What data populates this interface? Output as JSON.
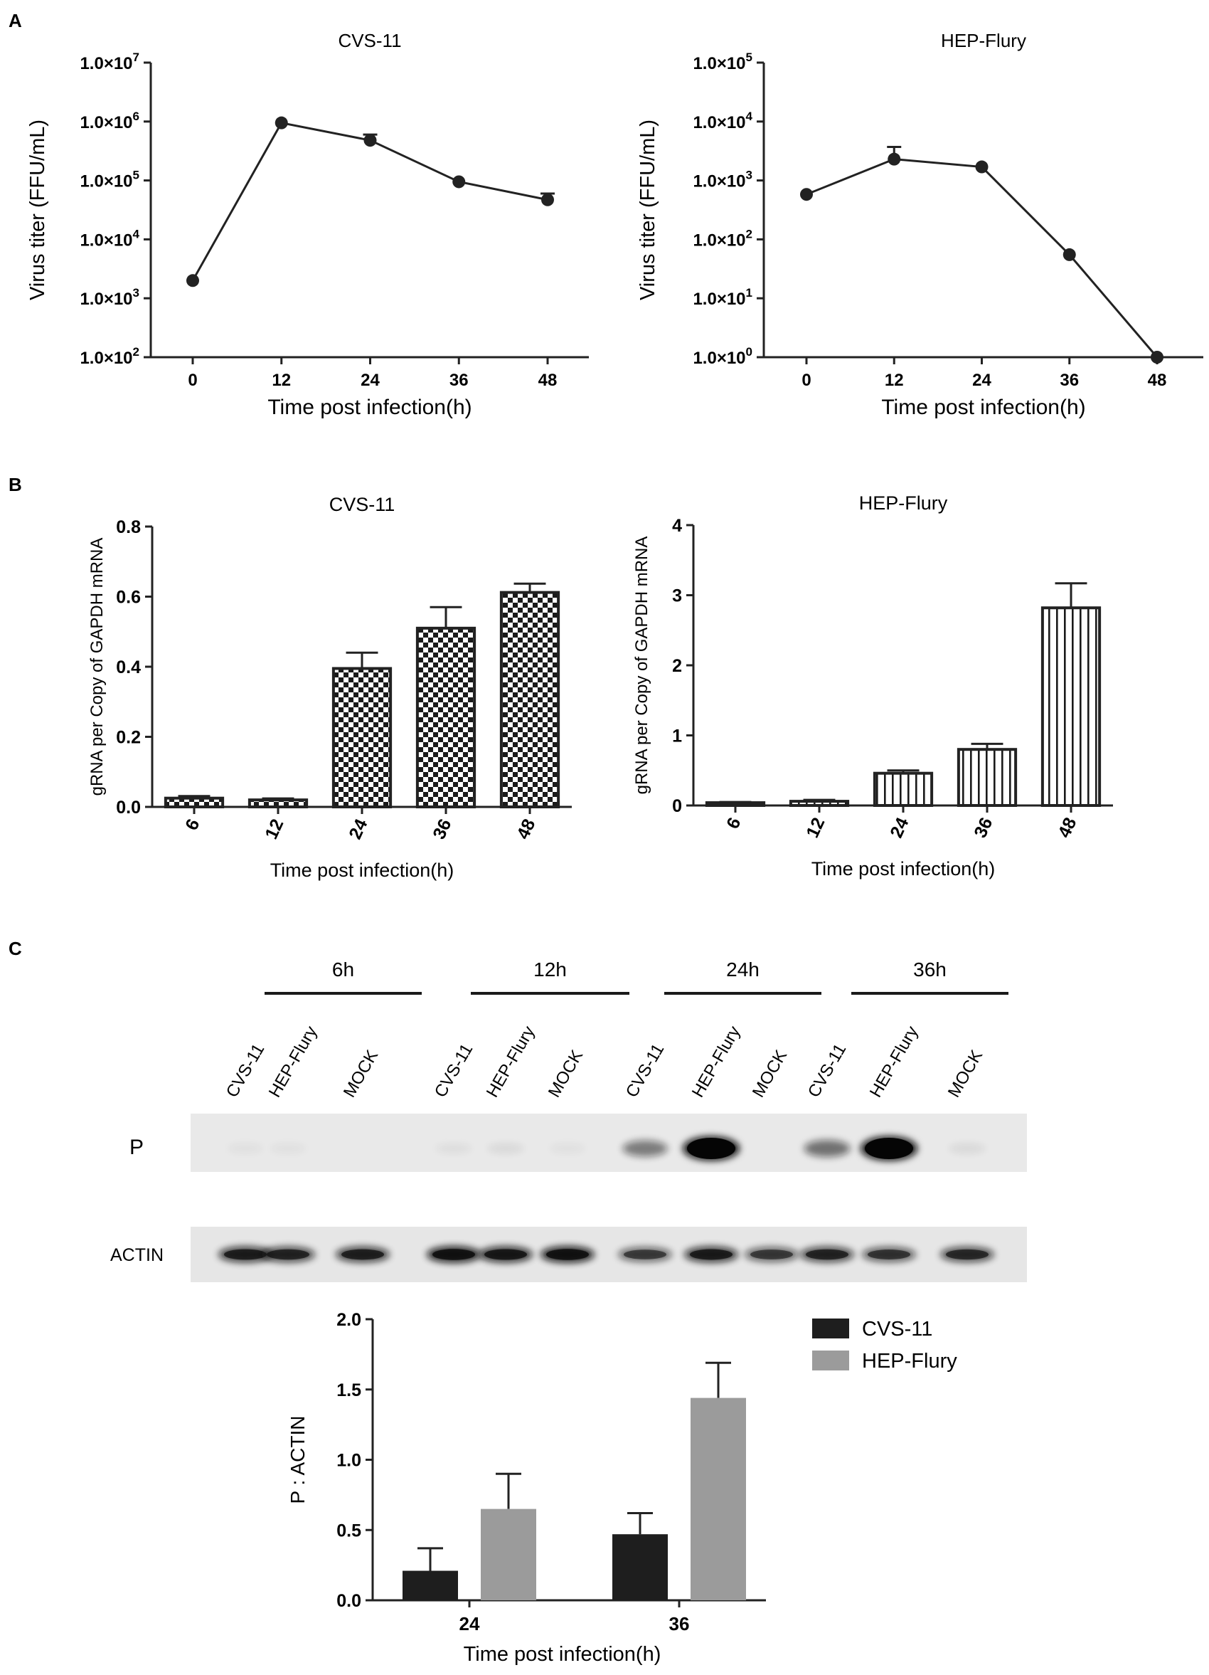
{
  "panels": {
    "A": "A",
    "B": "B",
    "C": "C"
  },
  "chart_data": [
    {
      "id": "A1",
      "type": "line",
      "title": "CVS-11",
      "xlabel": "Time post infection(h)",
      "ylabel": "Virus titer (FFU/mL)",
      "y_scale": "log",
      "ylim": [
        100,
        10000000
      ],
      "x": [
        0,
        12,
        24,
        36,
        48
      ],
      "y": [
        2000,
        950000,
        480000,
        95000,
        47000
      ],
      "err": [
        0,
        0,
        120000,
        0,
        13000
      ],
      "y_tick_labels": [
        {
          "b": "1.0×10",
          "e": "2"
        },
        {
          "b": "1.0×10",
          "e": "3"
        },
        {
          "b": "1.0×10",
          "e": "4"
        },
        {
          "b": "1.0×10",
          "e": "5"
        },
        {
          "b": "1.0×10",
          "e": "6"
        },
        {
          "b": "1.0×10",
          "e": "7"
        }
      ]
    },
    {
      "id": "A2",
      "type": "line",
      "title": "HEP-Flury",
      "xlabel": "Time post infection(h)",
      "ylabel": "Virus titer (FFU/mL)",
      "y_scale": "log",
      "ylim": [
        1,
        100000
      ],
      "x": [
        0,
        12,
        24,
        36,
        48
      ],
      "y": [
        580,
        2300,
        1700,
        55,
        1
      ],
      "err": [
        0,
        1400,
        0,
        0,
        0
      ],
      "y_tick_labels": [
        {
          "b": "1.0×10",
          "e": "0"
        },
        {
          "b": "1.0×10",
          "e": "1"
        },
        {
          "b": "1.0×10",
          "e": "2"
        },
        {
          "b": "1.0×10",
          "e": "3"
        },
        {
          "b": "1.0×10",
          "e": "4"
        },
        {
          "b": "1.0×10",
          "e": "5"
        }
      ]
    },
    {
      "id": "B1",
      "type": "bar",
      "title": "CVS-11",
      "xlabel": "Time post infection(h)",
      "ylabel": "gRNA per Copy of GAPDH mRNA",
      "categories": [
        "6",
        "12",
        "24",
        "36",
        "48"
      ],
      "values": [
        0.025,
        0.02,
        0.395,
        0.51,
        0.612
      ],
      "err": [
        0.006,
        0.004,
        0.045,
        0.06,
        0.025
      ],
      "ylim": [
        0,
        0.8
      ],
      "y_ticks": [
        "0.0",
        "0.2",
        "0.4",
        "0.6",
        "0.8"
      ],
      "pattern": "checker"
    },
    {
      "id": "B2",
      "type": "bar",
      "title": "HEP-Flury",
      "xlabel": "Time post infection(h)",
      "ylabel": "gRNA per Copy of GAPDH mRNA",
      "categories": [
        "6",
        "12",
        "24",
        "36",
        "48"
      ],
      "values": [
        0.04,
        0.06,
        0.46,
        0.8,
        2.82
      ],
      "err": [
        0.01,
        0.02,
        0.04,
        0.08,
        0.35
      ],
      "ylim": [
        0,
        4
      ],
      "y_ticks": [
        "0",
        "1",
        "2",
        "3",
        "4"
      ],
      "pattern": "vstripe"
    },
    {
      "id": "C1",
      "type": "bar",
      "xlabel": "Time post infection(h)",
      "ylabel": "P : ACTIN",
      "categories": [
        "24",
        "36"
      ],
      "series": [
        {
          "name": "CVS-11",
          "values": [
            0.21,
            0.47
          ],
          "err": [
            0.16,
            0.15
          ],
          "color": "#1e1e1e"
        },
        {
          "name": "HEP-Flury",
          "values": [
            0.65,
            1.44
          ],
          "err": [
            0.25,
            0.25
          ],
          "color": "#9b9b9b"
        }
      ],
      "ylim": [
        0,
        2.0
      ],
      "y_ticks": [
        "0.0",
        "0.5",
        "1.0",
        "1.5",
        "2.0"
      ],
      "legend": "top-right"
    }
  ],
  "western": {
    "timepoints": [
      "6h",
      "12h",
      "24h",
      "36h"
    ],
    "lanes": [
      "CVS-11",
      "HEP-Flury",
      "MOCK",
      "CVS-11",
      "HEP-Flury",
      "MOCK",
      "CVS-11",
      "HEP-Flury",
      "MOCK",
      "CVS-11",
      "HEP-Flury",
      "MOCK"
    ],
    "p_label": "P",
    "actin_label": "ACTIN",
    "p_intensity": [
      0.02,
      0.02,
      0.0,
      0.03,
      0.05,
      0.02,
      0.45,
      1.0,
      0.0,
      0.5,
      1.0,
      0.05
    ],
    "actin_intensity": [
      0.8,
      0.75,
      0.78,
      0.92,
      0.85,
      0.92,
      0.6,
      0.82,
      0.62,
      0.75,
      0.65,
      0.72
    ]
  }
}
